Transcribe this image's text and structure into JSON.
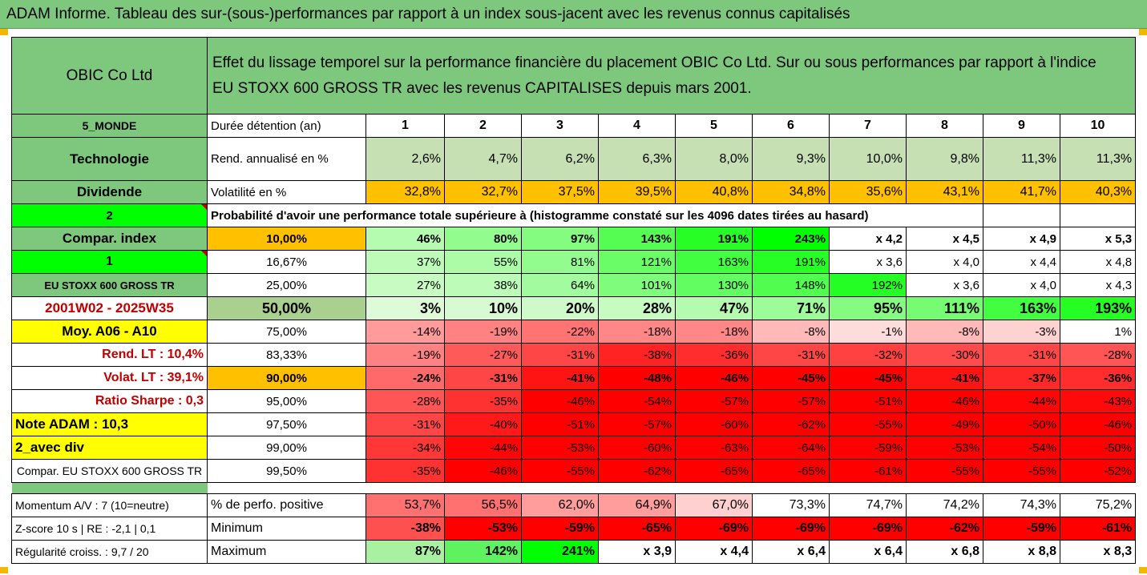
{
  "banner": {
    "title": "ADAM Informe. Tableau des sur-(sous-)performances par rapport à un index sous-jacent avec les revenus connus capitalisés"
  },
  "header": {
    "company": "OBIC Co Ltd",
    "description_line1": "Effet du lissage temporel sur la performance financière du placement OBIC Co Ltd. Sur ou sous performances par rapport à l'indice",
    "description_line2": "EU STOXX 600 GROSS TR avec les revenus CAPITALISES depuis mars 2001."
  },
  "left": {
    "zone": "5_MONDE",
    "sector": "Technologie",
    "dividende": "Dividende",
    "num2": "2",
    "compar_index": "Compar. index",
    "num1": "1",
    "index_name": "EU STOXX 600 GROSS TR",
    "period": "2001W02 - 2025W35",
    "moy": "Moy. A06 - A10",
    "rend_lt": "Rend. LT :   10,4%",
    "volat_lt": "Volat. LT :   39,1%",
    "sharpe": "Ratio Sharpe :   0,3",
    "note": "Note ADAM : 10,3",
    "avec_div": "2_avec div",
    "compar_index2": "Compar. EU STOXX 600 GROSS TR",
    "momentum": "Momentum A/V : 7 (10=neutre)",
    "zscore": "Z-score 10 s | RE : -2,1 | 0,1",
    "regularite": "Régularité croiss. : 9,7 / 20"
  },
  "rows": {
    "duree": {
      "label": "Durée détention (an)",
      "values": [
        "1",
        "2",
        "3",
        "4",
        "5",
        "6",
        "7",
        "8",
        "9",
        "10"
      ]
    },
    "rend": {
      "label": "Rend. annualisé en %",
      "values": [
        "2,6%",
        "4,7%",
        "6,2%",
        "6,3%",
        "8,0%",
        "9,3%",
        "10,0%",
        "9,8%",
        "11,3%",
        "11,3%"
      ]
    },
    "vol": {
      "label": "Volatilité en %",
      "values": [
        "32,8%",
        "32,7%",
        "37,5%",
        "39,5%",
        "40,8%",
        "34,8%",
        "35,6%",
        "43,1%",
        "41,7%",
        "40,3%"
      ]
    },
    "proba_title": "Probabilité d'avoir une performance totale supérieure à (histogramme constaté sur les 4096 dates tirées au hasard)",
    "perc": [
      {
        "p": "10,00%",
        "v": [
          "46%",
          "80%",
          "97%",
          "143%",
          "191%",
          "243%",
          "x 4,2",
          "x 4,5",
          "x 4,9",
          "x 5,3"
        ]
      },
      {
        "p": "16,67%",
        "v": [
          "37%",
          "55%",
          "81%",
          "121%",
          "163%",
          "191%",
          "x 3,6",
          "x 4,0",
          "x 4,4",
          "x 4,8"
        ]
      },
      {
        "p": "25,00%",
        "v": [
          "27%",
          "38%",
          "64%",
          "101%",
          "130%",
          "148%",
          "192%",
          "x 3,6",
          "x 4,0",
          "x 4,3"
        ]
      },
      {
        "p": "50,00%",
        "v": [
          "3%",
          "10%",
          "20%",
          "28%",
          "47%",
          "71%",
          "95%",
          "111%",
          "163%",
          "193%"
        ]
      },
      {
        "p": "75,00%",
        "v": [
          "-14%",
          "-19%",
          "-22%",
          "-18%",
          "-18%",
          "-8%",
          "-1%",
          "-8%",
          "-3%",
          "1%"
        ]
      },
      {
        "p": "83,33%",
        "v": [
          "-19%",
          "-27%",
          "-31%",
          "-38%",
          "-36%",
          "-31%",
          "-32%",
          "-30%",
          "-31%",
          "-28%"
        ]
      },
      {
        "p": "90,00%",
        "v": [
          "-24%",
          "-31%",
          "-41%",
          "-48%",
          "-46%",
          "-45%",
          "-45%",
          "-41%",
          "-37%",
          "-36%"
        ]
      },
      {
        "p": "95,00%",
        "v": [
          "-28%",
          "-35%",
          "-46%",
          "-54%",
          "-57%",
          "-57%",
          "-51%",
          "-46%",
          "-44%",
          "-43%"
        ]
      },
      {
        "p": "97,50%",
        "v": [
          "-31%",
          "-40%",
          "-51%",
          "-57%",
          "-60%",
          "-62%",
          "-55%",
          "-49%",
          "-50%",
          "-46%"
        ]
      },
      {
        "p": "99,00%",
        "v": [
          "-34%",
          "-44%",
          "-53%",
          "-60%",
          "-63%",
          "-64%",
          "-59%",
          "-53%",
          "-54%",
          "-50%"
        ]
      },
      {
        "p": "99,50%",
        "v": [
          "-35%",
          "-46%",
          "-55%",
          "-62%",
          "-65%",
          "-65%",
          "-61%",
          "-55%",
          "-55%",
          "-52%"
        ]
      }
    ],
    "positive": {
      "label": "% de perfo. positive",
      "values": [
        "53,7%",
        "56,5%",
        "62,0%",
        "64,9%",
        "67,0%",
        "73,3%",
        "74,7%",
        "74,2%",
        "74,3%",
        "75,2%"
      ]
    },
    "minimum": {
      "label": "Minimum",
      "values": [
        "-38%",
        "-53%",
        "-59%",
        "-65%",
        "-69%",
        "-69%",
        "-69%",
        "-62%",
        "-59%",
        "-61%"
      ]
    },
    "maximum": {
      "label": "Maximum",
      "values": [
        "87%",
        "142%",
        "241%",
        "x 3,9",
        "x 4,4",
        "x 6,4",
        "x 6,4",
        "x 6,8",
        "x 8,8",
        "x 8,3"
      ]
    }
  },
  "colors": {
    "green_header": "#7ec87e",
    "yellow": "#ffff00",
    "orange": "#ffc000",
    "bright_green": "#00ff00",
    "red": "#ff0000"
  }
}
